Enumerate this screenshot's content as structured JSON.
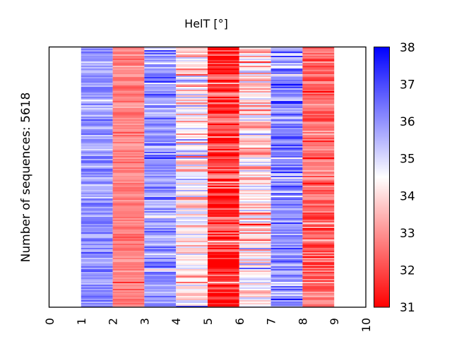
{
  "chart_data": {
    "type": "heatmap",
    "title": "HelT [°]",
    "xlabel": "",
    "ylabel": "Number of sequences: 5618",
    "n_sequences": 5618,
    "x_ticks": [
      "0",
      "1",
      "2",
      "3",
      "4",
      "5",
      "6",
      "7",
      "8",
      "9",
      "10"
    ],
    "xlim": [
      0,
      10
    ],
    "colorbar": {
      "min": 31,
      "max": 38,
      "ticks": [
        "31",
        "32",
        "33",
        "34",
        "35",
        "36",
        "37",
        "38"
      ],
      "colors": [
        "#ff0000",
        "#ffffff",
        "#0000ff"
      ],
      "midpoint": 34.5
    },
    "columns": [
      {
        "position": 1,
        "typical_value": 35.9,
        "spread": 0.5
      },
      {
        "position": 2,
        "typical_value": 32.8,
        "spread": 0.35
      },
      {
        "position": 3,
        "typical_value": 35.9,
        "spread": 0.6
      },
      {
        "position": 4,
        "typical_value": 34.3,
        "spread": 0.9
      },
      {
        "position": 5,
        "typical_value": 31.6,
        "spread": 1.0
      },
      {
        "position": 6,
        "typical_value": 34.1,
        "spread": 0.9
      },
      {
        "position": 7,
        "typical_value": 36.0,
        "spread": 0.8
      },
      {
        "position": 8,
        "typical_value": 32.5,
        "spread": 0.6
      }
    ]
  }
}
